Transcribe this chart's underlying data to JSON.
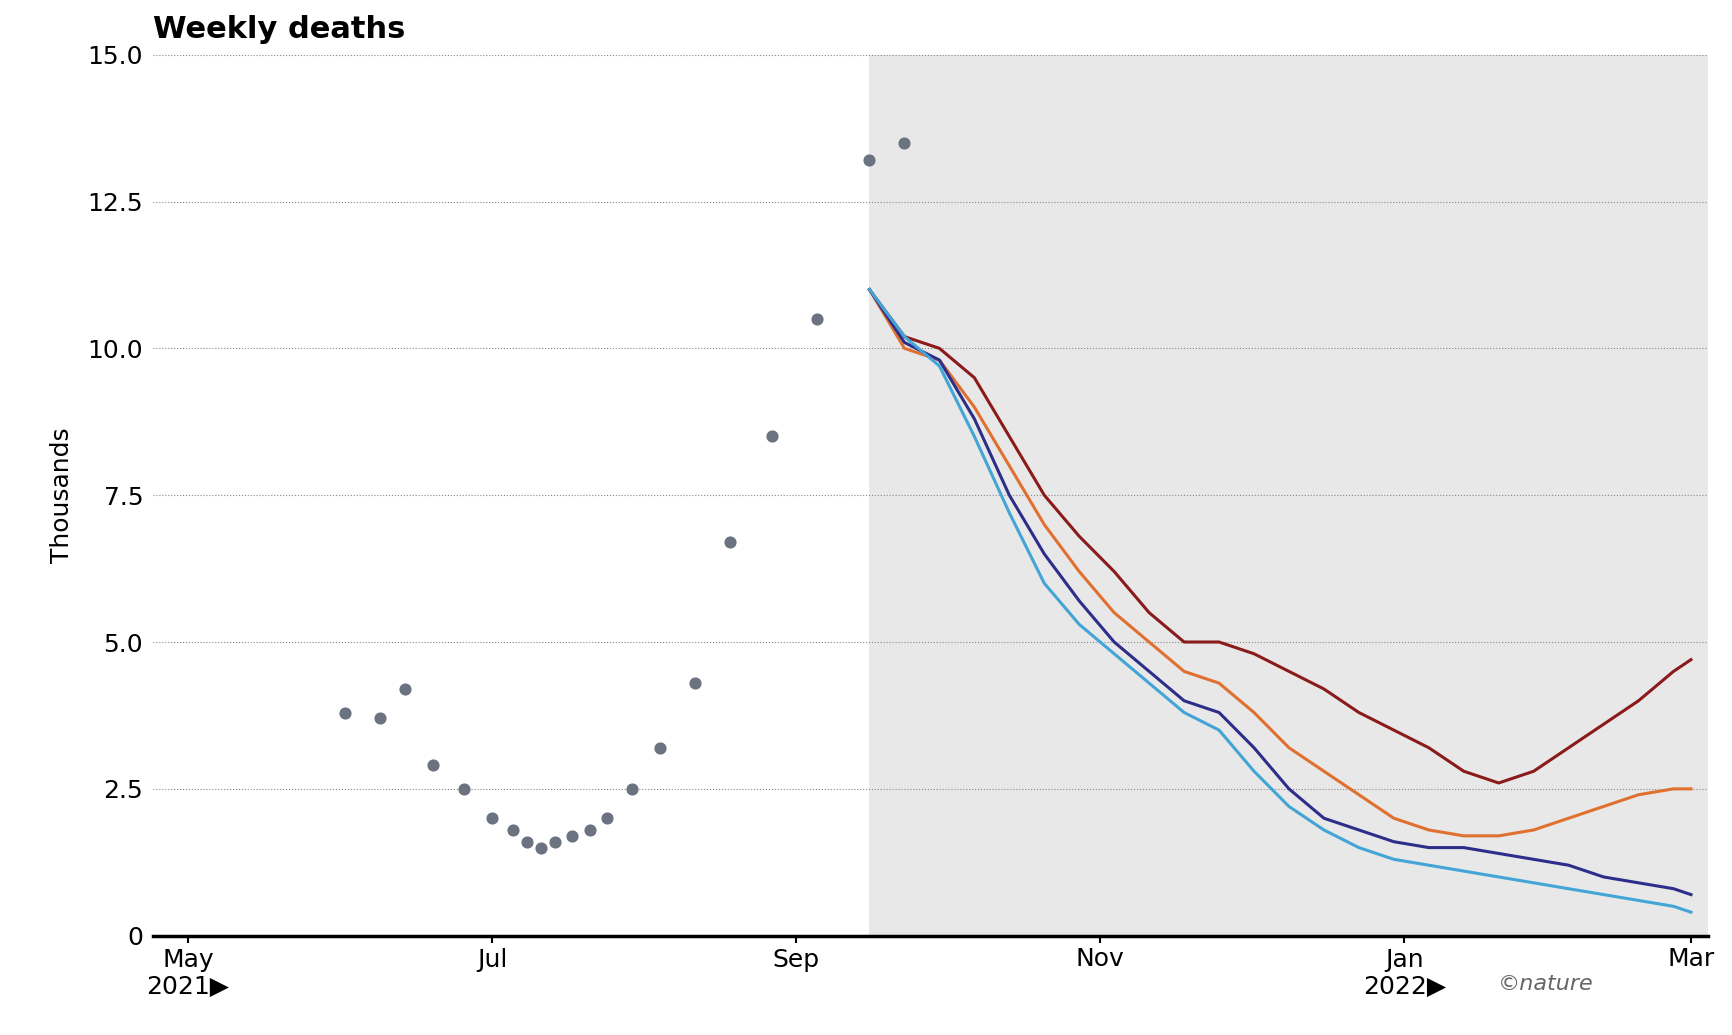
{
  "title": "Weekly deaths",
  "ylabel": "Thousands",
  "ylim": [
    0,
    15.0
  ],
  "yticks": [
    0,
    2.5,
    5.0,
    7.5,
    10.0,
    12.5,
    15.0
  ],
  "background_color": "#ffffff",
  "shaded_region_color": "#e8e8e8",
  "dot_color": "#6b7280",
  "dot_x": [
    4.5,
    5.5,
    6.2,
    7.0,
    7.9,
    8.7,
    9.3,
    9.7,
    10.1,
    10.5,
    11.0,
    11.5,
    12.0,
    12.7,
    13.5,
    14.5,
    15.5,
    16.7,
    18.0,
    19.5,
    20.5
  ],
  "dot_y": [
    3.8,
    3.7,
    4.2,
    2.9,
    2.5,
    2.0,
    1.8,
    1.6,
    1.5,
    1.6,
    1.7,
    1.8,
    2.0,
    2.5,
    3.2,
    4.3,
    6.7,
    8.5,
    10.5,
    13.2,
    13.5
  ],
  "shaded_start_x": 19.5,
  "lines": {
    "dark_red": {
      "color": "#8b1a1a",
      "x": [
        19.5,
        20.5,
        21.5,
        22.5,
        23.5,
        24.5,
        25.5,
        26.5,
        27.5,
        28.5,
        29.5,
        30.5,
        31.5,
        32.5,
        33.5,
        34.5,
        35.5,
        36.5,
        37.5,
        38.5,
        39.5,
        40.5,
        41.5,
        42.5,
        43.0
      ],
      "y": [
        11.0,
        10.2,
        10.0,
        9.5,
        8.5,
        7.5,
        6.8,
        6.2,
        5.5,
        5.0,
        5.0,
        4.8,
        4.5,
        4.2,
        3.8,
        3.5,
        3.2,
        2.8,
        2.6,
        2.8,
        3.2,
        3.6,
        4.0,
        4.5,
        4.7
      ]
    },
    "orange": {
      "color": "#e07030",
      "x": [
        19.5,
        20.5,
        21.5,
        22.5,
        23.5,
        24.5,
        25.5,
        26.5,
        27.5,
        28.5,
        29.5,
        30.5,
        31.5,
        32.5,
        33.5,
        34.5,
        35.5,
        36.5,
        37.5,
        38.5,
        39.5,
        40.5,
        41.5,
        42.5,
        43.0
      ],
      "y": [
        11.0,
        10.0,
        9.8,
        9.0,
        8.0,
        7.0,
        6.2,
        5.5,
        5.0,
        4.5,
        4.3,
        3.8,
        3.2,
        2.8,
        2.4,
        2.0,
        1.8,
        1.7,
        1.7,
        1.8,
        2.0,
        2.2,
        2.4,
        2.5,
        2.5
      ]
    },
    "dark_blue": {
      "color": "#2d2d8a",
      "x": [
        19.5,
        20.5,
        21.5,
        22.5,
        23.5,
        24.5,
        25.5,
        26.5,
        27.5,
        28.5,
        29.5,
        30.5,
        31.5,
        32.5,
        33.5,
        34.5,
        35.5,
        36.5,
        37.5,
        38.5,
        39.5,
        40.5,
        41.5,
        42.5,
        43.0
      ],
      "y": [
        11.0,
        10.1,
        9.8,
        8.8,
        7.5,
        6.5,
        5.7,
        5.0,
        4.5,
        4.0,
        3.8,
        3.2,
        2.5,
        2.0,
        1.8,
        1.6,
        1.5,
        1.5,
        1.4,
        1.3,
        1.2,
        1.0,
        0.9,
        0.8,
        0.7
      ]
    },
    "light_blue": {
      "color": "#42a5d5",
      "x": [
        19.5,
        20.5,
        21.5,
        22.5,
        23.5,
        24.5,
        25.5,
        26.5,
        27.5,
        28.5,
        29.5,
        30.5,
        31.5,
        32.5,
        33.5,
        34.5,
        35.5,
        36.5,
        37.5,
        38.5,
        39.5,
        40.5,
        41.5,
        42.5,
        43.0
      ],
      "y": [
        11.0,
        10.2,
        9.7,
        8.5,
        7.2,
        6.0,
        5.3,
        4.8,
        4.3,
        3.8,
        3.5,
        2.8,
        2.2,
        1.8,
        1.5,
        1.3,
        1.2,
        1.1,
        1.0,
        0.9,
        0.8,
        0.7,
        0.6,
        0.5,
        0.4
      ]
    }
  },
  "x_tick_positions": [
    0,
    8.7,
    17.4,
    26.1,
    34.8,
    43.0
  ],
  "x_tick_labels": [
    "May\n2021▶",
    "Jul",
    "Sep",
    "Nov",
    "Jan\n2022▶",
    "Mar"
  ],
  "nature_text": "©nature",
  "nature_color": "#666666"
}
